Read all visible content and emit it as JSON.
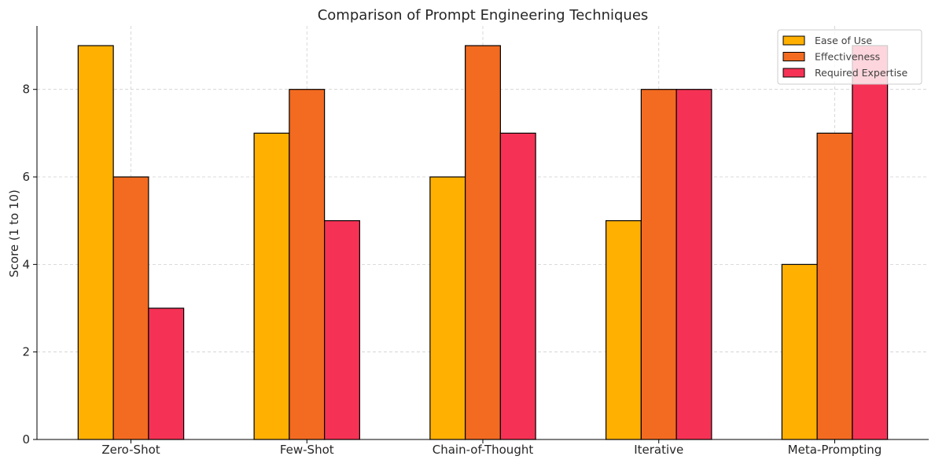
{
  "chart_data": {
    "type": "bar",
    "title": "Comparison of Prompt Engineering Techniques",
    "xlabel": "",
    "ylabel": "Score (1 to 10)",
    "categories": [
      "Zero-Shot",
      "Few-Shot",
      "Chain-of-Thought",
      "Iterative",
      "Meta-Prompting"
    ],
    "series": [
      {
        "name": "Ease of Use",
        "color": "#FFB000",
        "values": [
          9,
          7,
          6,
          5,
          4
        ]
      },
      {
        "name": "Effectiveness",
        "color": "#F26B21",
        "values": [
          6,
          8,
          9,
          8,
          7
        ]
      },
      {
        "name": "Required Expertise",
        "color": "#F53255",
        "values": [
          3,
          5,
          7,
          8,
          9
        ]
      }
    ],
    "ylim": [
      0,
      9.45
    ],
    "yticks": [
      0,
      2,
      4,
      6,
      8
    ],
    "grid": true,
    "legend_position": "top-right"
  }
}
